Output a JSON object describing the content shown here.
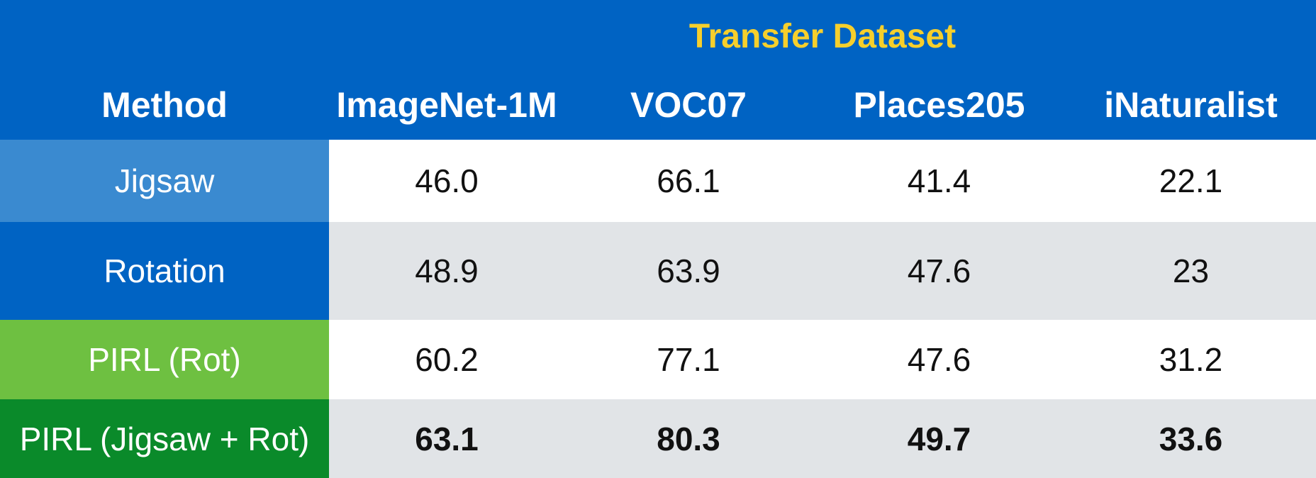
{
  "colors": {
    "header_bg": "#0063c3",
    "super_title": "#f6cf2c",
    "jigsaw_bg": "#3a8ad0",
    "rotation_bg": "#0063c3",
    "pirl_rot_bg": "#6ec041",
    "pirl_jigsaw_rot_bg": "#0a8a2a",
    "row_white": "#ffffff",
    "row_gray": "#e1e4e7"
  },
  "header": {
    "super_title": "Transfer Dataset",
    "columns": [
      "Method",
      "ImageNet-1M",
      "VOC07",
      "Places205",
      "iNaturalist"
    ]
  },
  "rows": [
    {
      "method": "Jigsaw",
      "values": [
        "46.0",
        "66.1",
        "41.4",
        "22.1"
      ]
    },
    {
      "method": "Rotation",
      "values": [
        "48.9",
        "63.9",
        "47.6",
        "23"
      ]
    },
    {
      "method": "PIRL (Rot)",
      "values": [
        "60.2",
        "77.1",
        "47.6",
        "31.2"
      ]
    },
    {
      "method": "PIRL (Jigsaw + Rot)",
      "values": [
        "63.1",
        "80.3",
        "49.7",
        "33.6"
      ],
      "bold": true
    }
  ]
}
